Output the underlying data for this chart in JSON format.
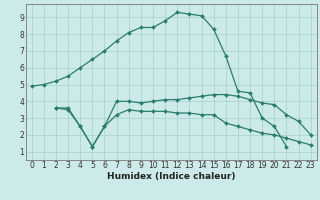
{
  "xlabel": "Humidex (Indice chaleur)",
  "xlim": [
    -0.5,
    23.5
  ],
  "ylim": [
    0.5,
    9.8
  ],
  "xticks": [
    0,
    1,
    2,
    3,
    4,
    5,
    6,
    7,
    8,
    9,
    10,
    11,
    12,
    13,
    14,
    15,
    16,
    17,
    18,
    19,
    20,
    21,
    22,
    23
  ],
  "yticks": [
    1,
    2,
    3,
    4,
    5,
    6,
    7,
    8,
    9
  ],
  "bg_color": "#cceae8",
  "grid_color": "#aad4d2",
  "line_color": "#2a7d6e",
  "lines": [
    {
      "x": [
        0,
        1,
        2,
        3,
        4,
        5,
        6,
        7,
        8,
        9,
        10,
        11,
        12,
        13,
        14,
        15,
        16,
        17,
        18,
        19,
        20,
        21,
        22,
        23
      ],
      "y": [
        4.9,
        5.0,
        5.2,
        5.5,
        6.0,
        6.5,
        7.0,
        7.6,
        8.1,
        8.4,
        8.4,
        8.8,
        9.3,
        9.2,
        9.1,
        8.3,
        6.7,
        4.6,
        4.5,
        3.0,
        2.5,
        1.3,
        null,
        null
      ]
    },
    {
      "x": [
        2,
        3,
        4,
        5,
        6,
        7,
        8,
        9,
        10,
        11,
        12,
        13,
        14,
        15,
        16,
        17,
        18,
        19,
        20,
        21,
        22,
        23
      ],
      "y": [
        3.6,
        3.6,
        2.5,
        1.3,
        2.5,
        4.0,
        4.0,
        3.9,
        4.0,
        4.1,
        4.1,
        4.2,
        4.3,
        4.4,
        4.4,
        4.3,
        4.1,
        3.9,
        3.8,
        3.2,
        2.8,
        2.0
      ]
    },
    {
      "x": [
        2,
        3,
        4,
        5,
        6,
        7,
        8,
        9,
        10,
        11,
        12,
        13,
        14,
        15,
        16,
        17,
        18,
        19,
        20,
        21,
        22,
        23
      ],
      "y": [
        3.6,
        3.5,
        2.5,
        1.3,
        2.5,
        3.2,
        3.5,
        3.4,
        3.4,
        3.4,
        3.3,
        3.3,
        3.2,
        3.2,
        2.7,
        2.5,
        2.3,
        2.1,
        2.0,
        1.8,
        1.6,
        1.4
      ]
    }
  ]
}
